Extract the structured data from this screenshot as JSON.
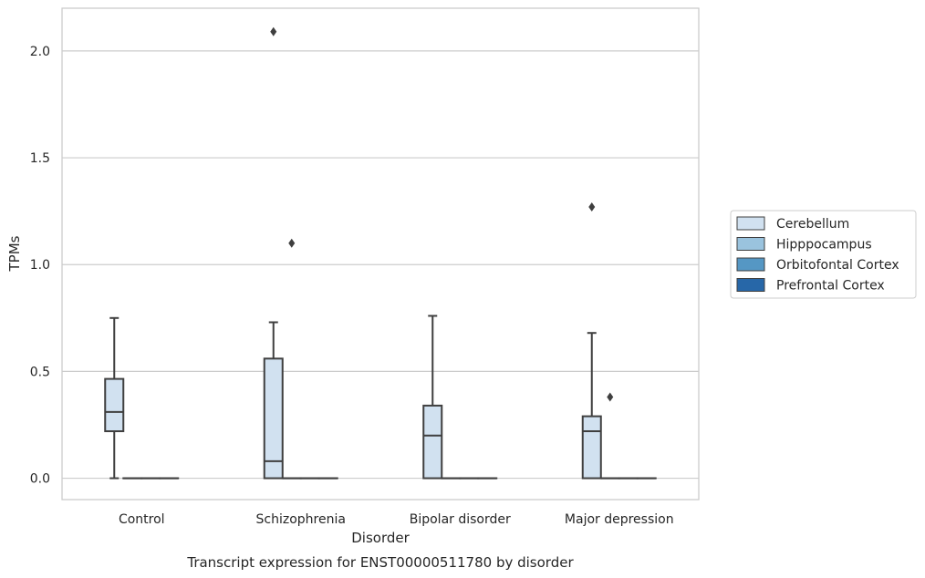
{
  "chart_data": {
    "type": "box",
    "caption": "Transcript expression for ENST00000511780 by disorder",
    "xlabel": "Disorder",
    "ylabel": "TPMs",
    "ylim": [
      -0.1,
      2.2
    ],
    "yticks": [
      0.0,
      0.5,
      1.0,
      1.5,
      2.0
    ],
    "ytick_labels": [
      "0.0",
      "0.5",
      "1.0",
      "1.5",
      "2.0"
    ],
    "grid": "horizontal",
    "legend_position": "right",
    "categories": [
      "Control",
      "Schizophrenia",
      "Bipolar disorder",
      "Major depression"
    ],
    "series": [
      {
        "name": "Cerebellum",
        "color": "#d1e1f0",
        "boxes": [
          {
            "whislo": 0.0,
            "q1": 0.22,
            "med": 0.31,
            "q3": 0.465,
            "whishi": 0.75,
            "fliers": []
          },
          {
            "whislo": 0.0,
            "q1": 0.0,
            "med": 0.08,
            "q3": 0.56,
            "whishi": 0.73,
            "fliers": [
              2.09
            ]
          },
          {
            "whislo": 0.0,
            "q1": 0.0,
            "med": 0.2,
            "q3": 0.34,
            "whishi": 0.76,
            "fliers": []
          },
          {
            "whislo": 0.0,
            "q1": 0.0,
            "med": 0.22,
            "q3": 0.29,
            "whishi": 0.68,
            "fliers": [
              1.27
            ]
          }
        ]
      },
      {
        "name": "Hipppocampus",
        "color": "#9ac3de",
        "boxes": [
          {
            "whislo": 0.0,
            "q1": 0.0,
            "med": 0.0,
            "q3": 0.0,
            "whishi": 0.0,
            "fliers": []
          },
          {
            "whislo": 0.0,
            "q1": 0.0,
            "med": 0.0,
            "q3": 0.0,
            "whishi": 0.0,
            "fliers": [
              1.1
            ]
          },
          {
            "whislo": 0.0,
            "q1": 0.0,
            "med": 0.0,
            "q3": 0.0,
            "whishi": 0.0,
            "fliers": []
          },
          {
            "whislo": 0.0,
            "q1": 0.0,
            "med": 0.0,
            "q3": 0.0,
            "whishi": 0.0,
            "fliers": [
              0.38
            ]
          }
        ]
      },
      {
        "name": "Orbitofontal Cortex",
        "color": "#5597c4",
        "boxes": [
          {
            "whislo": 0.0,
            "q1": 0.0,
            "med": 0.0,
            "q3": 0.0,
            "whishi": 0.0,
            "fliers": []
          },
          {
            "whislo": 0.0,
            "q1": 0.0,
            "med": 0.0,
            "q3": 0.0,
            "whishi": 0.0,
            "fliers": []
          },
          {
            "whislo": 0.0,
            "q1": 0.0,
            "med": 0.0,
            "q3": 0.0,
            "whishi": 0.0,
            "fliers": []
          },
          {
            "whislo": 0.0,
            "q1": 0.0,
            "med": 0.0,
            "q3": 0.0,
            "whishi": 0.0,
            "fliers": []
          }
        ]
      },
      {
        "name": "Prefrontal Cortex",
        "color": "#2767a8",
        "boxes": [
          {
            "whislo": 0.0,
            "q1": 0.0,
            "med": 0.0,
            "q3": 0.0,
            "whishi": 0.0,
            "fliers": []
          },
          {
            "whislo": 0.0,
            "q1": 0.0,
            "med": 0.0,
            "q3": 0.0,
            "whishi": 0.0,
            "fliers": []
          },
          {
            "whislo": 0.0,
            "q1": 0.0,
            "med": 0.0,
            "q3": 0.0,
            "whishi": 0.0,
            "fliers": []
          },
          {
            "whislo": 0.0,
            "q1": 0.0,
            "med": 0.0,
            "q3": 0.0,
            "whishi": 0.0,
            "fliers": []
          }
        ]
      }
    ]
  }
}
